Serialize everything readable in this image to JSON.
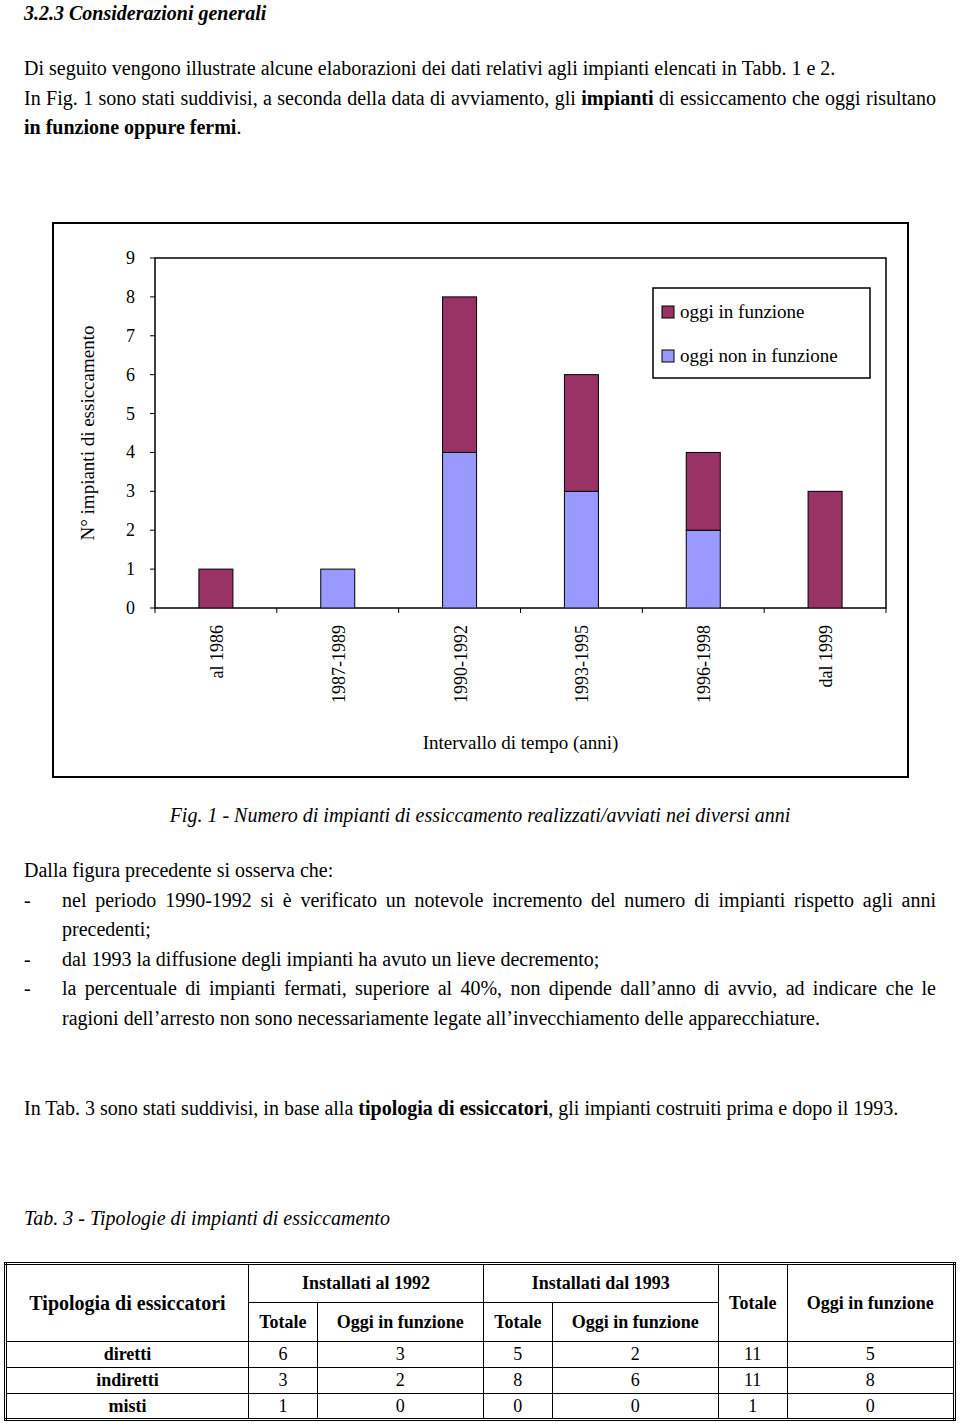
{
  "heading": "3.2.3 Considerazioni generali",
  "intro": [
    [
      {
        "text": "Di seguito vengono illustrate alcune elaborazioni dei dati relativi agli impianti elencati in Tabb. 1 e 2.",
        "bold": false
      }
    ],
    [
      {
        "text": "In Fig. 1 sono stati suddivisi, a seconda della data di avviamento, gli ",
        "bold": false
      },
      {
        "text": "impianti",
        "bold": true
      },
      {
        "text": " di essiccamento che oggi risultano ",
        "bold": false
      },
      {
        "text": "in funzione oppure fermi",
        "bold": true
      },
      {
        "text": ".",
        "bold": false
      }
    ]
  ],
  "chart_data": {
    "type": "bar",
    "stacked": true,
    "categories": [
      "al 1986",
      "1987-1989",
      "1990-1992",
      "1993-1995",
      "1996-1998",
      "dal 1999"
    ],
    "series": [
      {
        "name": "oggi in funzione",
        "color": "#993366",
        "values": [
          1,
          0,
          4,
          3,
          2,
          3
        ]
      },
      {
        "name": "oggi non in funzione",
        "color": "#9999ff",
        "values": [
          0,
          1,
          4,
          3,
          2,
          0
        ]
      }
    ],
    "x_label": "Intervallo di tempo (anni)",
    "y_label": "N° impianti di essiccamento",
    "ylim": [
      0,
      9
    ],
    "yticks": [
      0,
      1,
      2,
      3,
      4,
      5,
      6,
      7,
      8,
      9
    ],
    "grid": false,
    "legend": "top-right"
  },
  "caption": "Fig. 1 - Numero di impianti di essiccamento realizzati/avviati nei diversi anni",
  "observations": {
    "lead": "Dalla figura precedente si osserva che:",
    "bullet": "-",
    "items": [
      "nel periodo 1990-1992 si è verificato un notevole incremento del numero di impianti rispetto agli anni precedenti;",
      "dal 1993 la diffusione degli impianti ha avuto un lieve decremento;",
      "la percentuale di impianti fermati, superiore al 40%, non dipende dall’anno di avvio, ad indicare che le ragioni dell’arresto non sono necessariamente legate all’invecchiamento delle apparecchiature."
    ]
  },
  "table_intro": [
    {
      "text": "In Tab. 3 sono stati suddivisi, in base alla ",
      "bold": false
    },
    {
      "text": "tipologia di essiccatori",
      "bold": true
    },
    {
      "text": ", gli impianti costruiti prima e dopo il 1993.",
      "bold": false
    }
  ],
  "table": {
    "caption": "Tab. 3 - Tipologie di impianti di essiccamento",
    "header": {
      "first": "Tipologia di essiccatori",
      "groups": [
        {
          "title": "Installati al 1992",
          "columns": [
            "Totale",
            "Oggi in funzione"
          ]
        },
        {
          "title": "Installati dal 1993",
          "columns": [
            "Totale",
            "Oggi in funzione"
          ]
        }
      ],
      "totals": [
        "Totale",
        "Oggi in funzione"
      ]
    },
    "rows": [
      [
        "diretti",
        6,
        3,
        5,
        2,
        11,
        5
      ],
      [
        "indiretti",
        3,
        2,
        8,
        6,
        11,
        8
      ],
      [
        "misti",
        1,
        0,
        0,
        0,
        1,
        0
      ]
    ]
  }
}
